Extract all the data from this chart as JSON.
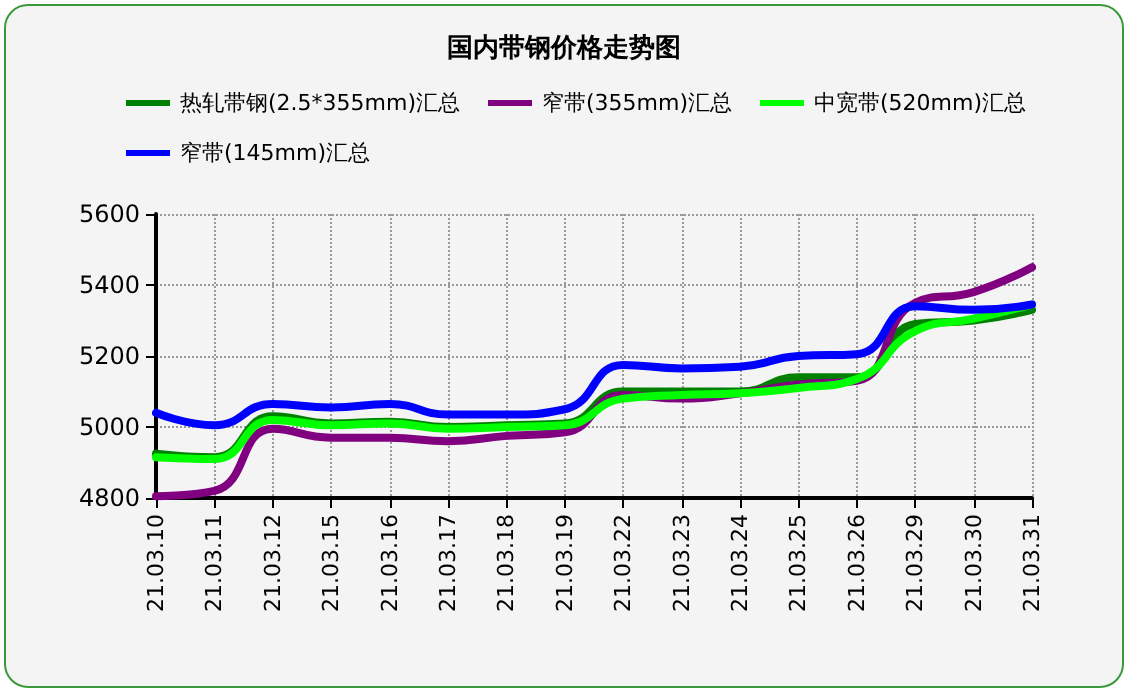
{
  "chart_data": {
    "type": "line",
    "title": "国内带钢价格走势图",
    "categories": [
      "21.03.10",
      "21.03.11",
      "21.03.12",
      "21.03.15",
      "21.03.16",
      "21.03.17",
      "21.03.18",
      "21.03.19",
      "21.03.22",
      "21.03.23",
      "21.03.24",
      "21.03.25",
      "21.03.26",
      "21.03.29",
      "21.03.30",
      "21.03.31"
    ],
    "series": [
      {
        "name": "热轧带钢(2.5*355mm)汇总",
        "color": "#008000",
        "values": [
          4925,
          4915,
          5030,
          5010,
          5015,
          5000,
          5005,
          5010,
          5100,
          5100,
          5100,
          5140,
          5140,
          5290,
          5300,
          5330
        ]
      },
      {
        "name": "窄带(355mm)汇总",
        "color": "#800080",
        "values": [
          4805,
          4820,
          4995,
          4970,
          4970,
          4960,
          4975,
          4985,
          5090,
          5080,
          5095,
          5120,
          5130,
          5350,
          5380,
          5450
        ]
      },
      {
        "name": "中宽带(520mm)汇总",
        "color": "#00ff00",
        "values": [
          4915,
          4910,
          5020,
          5005,
          5010,
          4995,
          5000,
          5005,
          5080,
          5090,
          5095,
          5110,
          5135,
          5270,
          5305,
          5345
        ]
      },
      {
        "name": "窄带(145mm)汇总",
        "color": "#0000ff",
        "values": [
          5040,
          5005,
          5065,
          5055,
          5065,
          5035,
          5035,
          5050,
          5175,
          5165,
          5170,
          5200,
          5205,
          5340,
          5330,
          5345
        ]
      }
    ],
    "ylim": [
      4800,
      5600
    ],
    "yticks": [
      4800,
      5000,
      5200,
      5400,
      5600
    ],
    "grid": true,
    "legend": "top",
    "marker": "none",
    "line_style": "solid"
  }
}
